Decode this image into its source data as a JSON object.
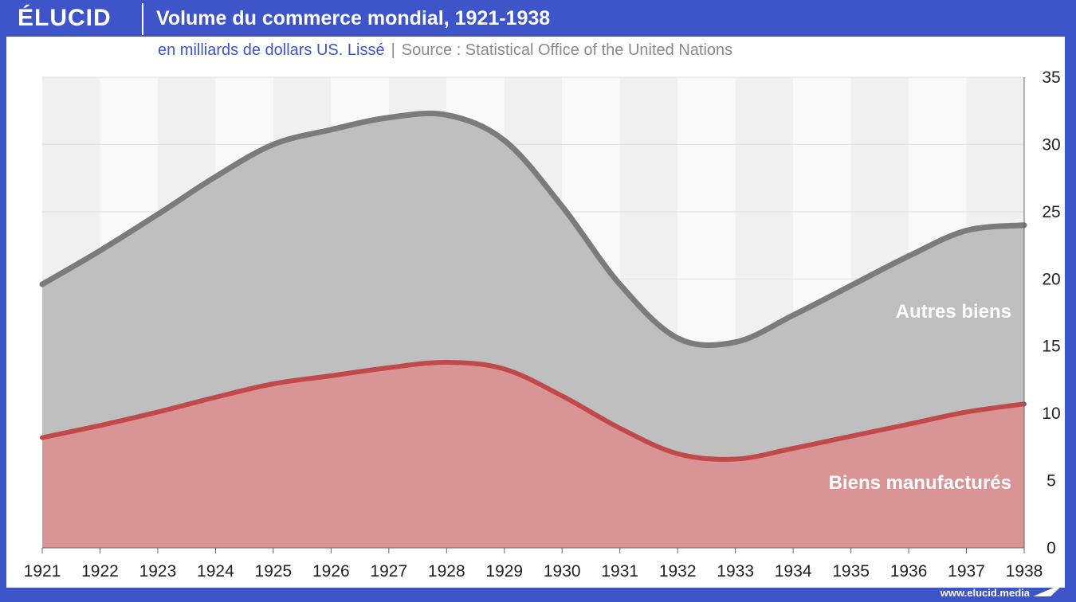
{
  "header": {
    "logo": "ÉLUCID",
    "title": "Volume du commerce mondial, 1921-1938",
    "subtitle": "en milliards de dollars US. Lissé",
    "source": "Source : Statistical Office of the United Nations"
  },
  "footer": {
    "url": "www.elucid.media"
  },
  "colors": {
    "brand": "#3d55c8",
    "total_line": "#7b7b7b",
    "total_fill": "#bfbfbf",
    "manuf_line": "#c04a4a",
    "manuf_fill": "#d99595",
    "band_dark": "#f0f0f0",
    "band_light": "#f9f9f9"
  },
  "chart_data": {
    "type": "area",
    "x": [
      1921,
      1922,
      1923,
      1924,
      1925,
      1926,
      1927,
      1928,
      1929,
      1930,
      1931,
      1932,
      1933,
      1934,
      1935,
      1936,
      1937,
      1938
    ],
    "series": [
      {
        "name": "Autres biens",
        "values": [
          19.6,
          22.1,
          24.8,
          27.6,
          30.0,
          31.1,
          32.0,
          32.2,
          30.3,
          25.4,
          19.6,
          15.6,
          15.3,
          17.3,
          19.5,
          21.7,
          23.6,
          24.0
        ]
      },
      {
        "name": "Biens manufacturés",
        "values": [
          8.2,
          9.1,
          10.1,
          11.2,
          12.2,
          12.8,
          13.4,
          13.8,
          13.3,
          11.3,
          8.9,
          7.0,
          6.6,
          7.4,
          8.3,
          9.2,
          10.1,
          10.7
        ]
      }
    ],
    "ylim": [
      0,
      35
    ],
    "yticks": [
      0,
      5,
      10,
      15,
      20,
      25,
      30,
      35
    ],
    "y_axis_side": "right",
    "grid": true,
    "legend": "inline labels",
    "labels": {
      "upper": "Autres biens",
      "lower": "Biens manufacturés"
    }
  }
}
